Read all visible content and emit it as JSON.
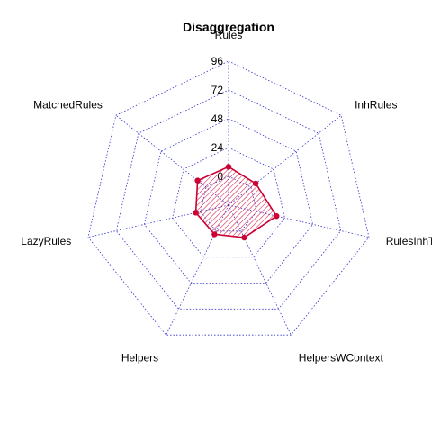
{
  "chart_data": {
    "type": "radar",
    "title": "Disaggregation",
    "axes": [
      "Rules",
      "InhRules",
      "RulesInhTrees",
      "HelpersWContext",
      "Helpers",
      "LazyRules",
      "MatchedRules"
    ],
    "rlim": [
      0,
      120
    ],
    "ticks": [
      0,
      24,
      48,
      72,
      96
    ],
    "tick_labels": [
      "0",
      "24",
      "48",
      "72",
      "96"
    ],
    "series": [
      {
        "values": [
          8,
          5,
          17,
          6,
          3,
          4,
          9
        ]
      }
    ],
    "grid": true,
    "colors": {
      "grid": "#3333cc",
      "series_line": "#cc0033",
      "series_fill": "#cc0033",
      "point": "#cc0033"
    },
    "fill_style": "hatched"
  }
}
